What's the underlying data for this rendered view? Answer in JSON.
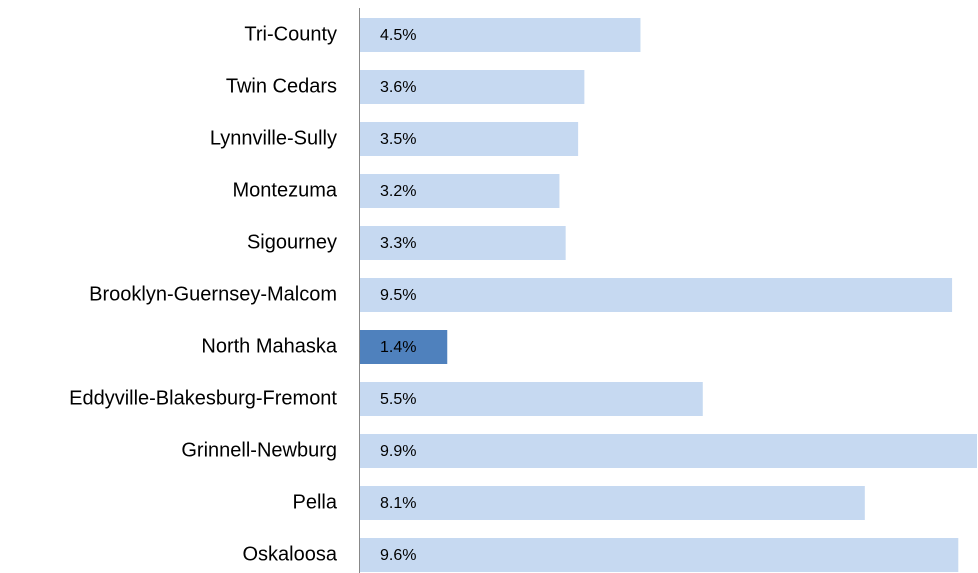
{
  "chart_data": {
    "type": "hbar",
    "categories": [
      "Tri-County",
      "Twin Cedars",
      "Lynnville-Sully",
      "Montezuma",
      "Sigourney",
      "Brooklyn-Guernsey-Malcom",
      "North Mahaska",
      "Eddyville-Blakesburg-Fremont",
      "Grinnell-Newburg",
      "Pella",
      "Oskaloosa"
    ],
    "values": [
      4.5,
      3.6,
      3.5,
      3.2,
      3.3,
      9.5,
      1.4,
      5.5,
      9.9,
      8.1,
      9.6
    ],
    "value_labels": [
      "4.5%",
      "3.6%",
      "3.5%",
      "3.2%",
      "3.3%",
      "9.5%",
      "1.4%",
      "5.5%",
      "9.9%",
      "8.1%",
      "9.6%"
    ],
    "colors": [
      "#c6d9f1",
      "#c6d9f1",
      "#c6d9f1",
      "#c6d9f1",
      "#c6d9f1",
      "#c6d9f1",
      "#4f81bd",
      "#c6d9f1",
      "#c6d9f1",
      "#c6d9f1",
      "#c6d9f1"
    ],
    "xlim": [
      0,
      9.9
    ]
  }
}
